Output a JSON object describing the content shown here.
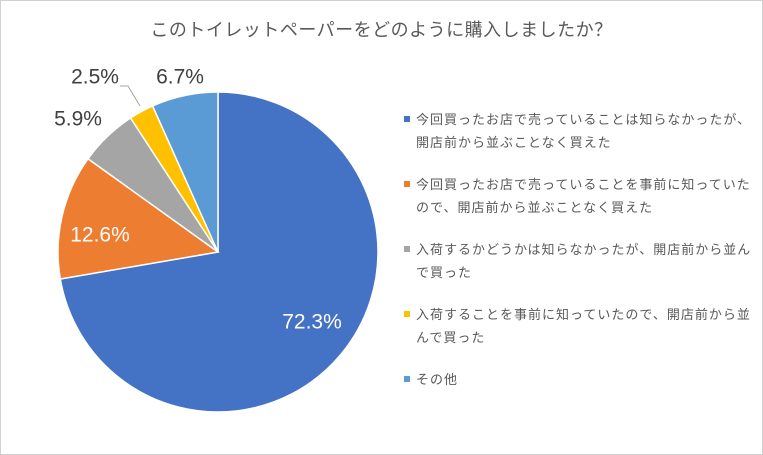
{
  "chart_data": {
    "type": "pie",
    "title": "このトイレットペーパーをどのように購入しましたか？",
    "start_angle": "12 o'clock",
    "direction": "clockwise",
    "legend_position": "right",
    "slices": [
      {
        "label": "今回買ったお店で売っていることは知らなかったが、開店前から並ぶことなく買えた",
        "value": 72.3,
        "display": "72.3%",
        "color": "#4472C4"
      },
      {
        "label": "今回買ったお店で売っていることを事前に知っていたので、開店前から並ぶことなく買えた",
        "value": 12.6,
        "display": "12.6%",
        "color": "#ED7D31"
      },
      {
        "label": "入荷するかどうかは知らなかったが、開店前から並んで買った",
        "value": 5.9,
        "display": "5.9%",
        "color": "#A5A5A5"
      },
      {
        "label": "入荷することを事前に知っていたので、開店前から並んで買った",
        "value": 2.5,
        "display": "2.5%",
        "color": "#FFC000"
      },
      {
        "label": "その他",
        "value": 6.7,
        "display": "6.7%",
        "color": "#5B9BD5"
      }
    ]
  }
}
